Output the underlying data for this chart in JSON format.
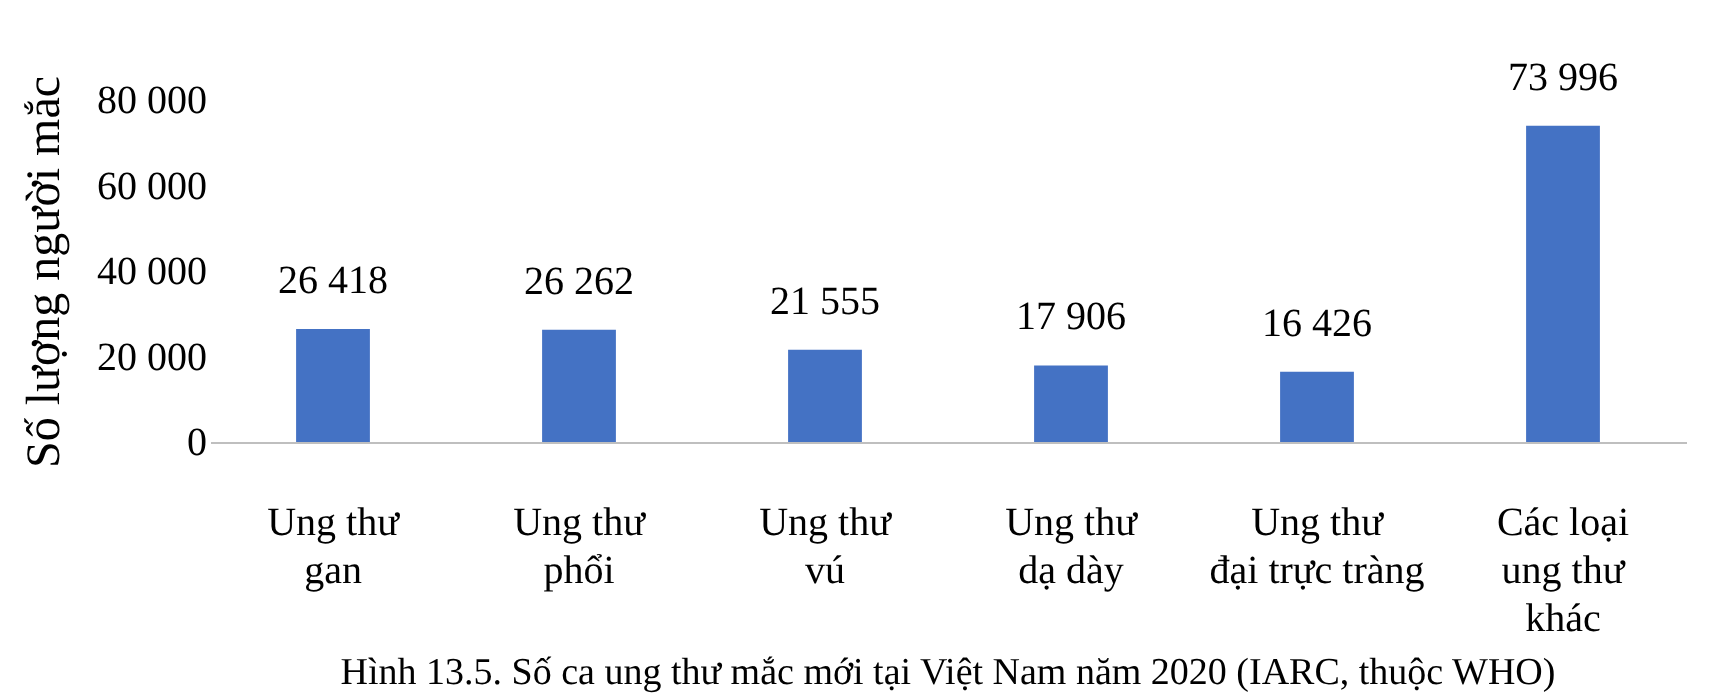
{
  "chart_data": {
    "type": "bar",
    "title": "Hình 13.5. Số ca ung thư mắc mới tại Việt Nam năm 2020 (IARC, thuộc WHO)",
    "ylabel": "Số lượng người mắc",
    "categories": [
      "Ung thư\ngan",
      "Ung thư\nphổi",
      "Ung thư\nvú",
      "Ung thư\ndạ dày",
      "Ung thư\nđại trực tràng",
      "Các loại\nung thư\nkhác"
    ],
    "values": [
      26418,
      26262,
      21555,
      17906,
      16426,
      73996
    ],
    "value_labels": [
      "26 418",
      "26 262",
      "21 555",
      "17 906",
      "16 426",
      "73 996"
    ],
    "color": "#4472c4",
    "ylim": [
      0,
      80000
    ],
    "yticks": [
      {
        "value": 0,
        "label": "0"
      },
      {
        "value": 20000,
        "label": "20 000"
      },
      {
        "value": 40000,
        "label": "40 000"
      },
      {
        "value": 60000,
        "label": "60 000"
      },
      {
        "value": 80000,
        "label": "80 000"
      }
    ],
    "grid": false
  }
}
